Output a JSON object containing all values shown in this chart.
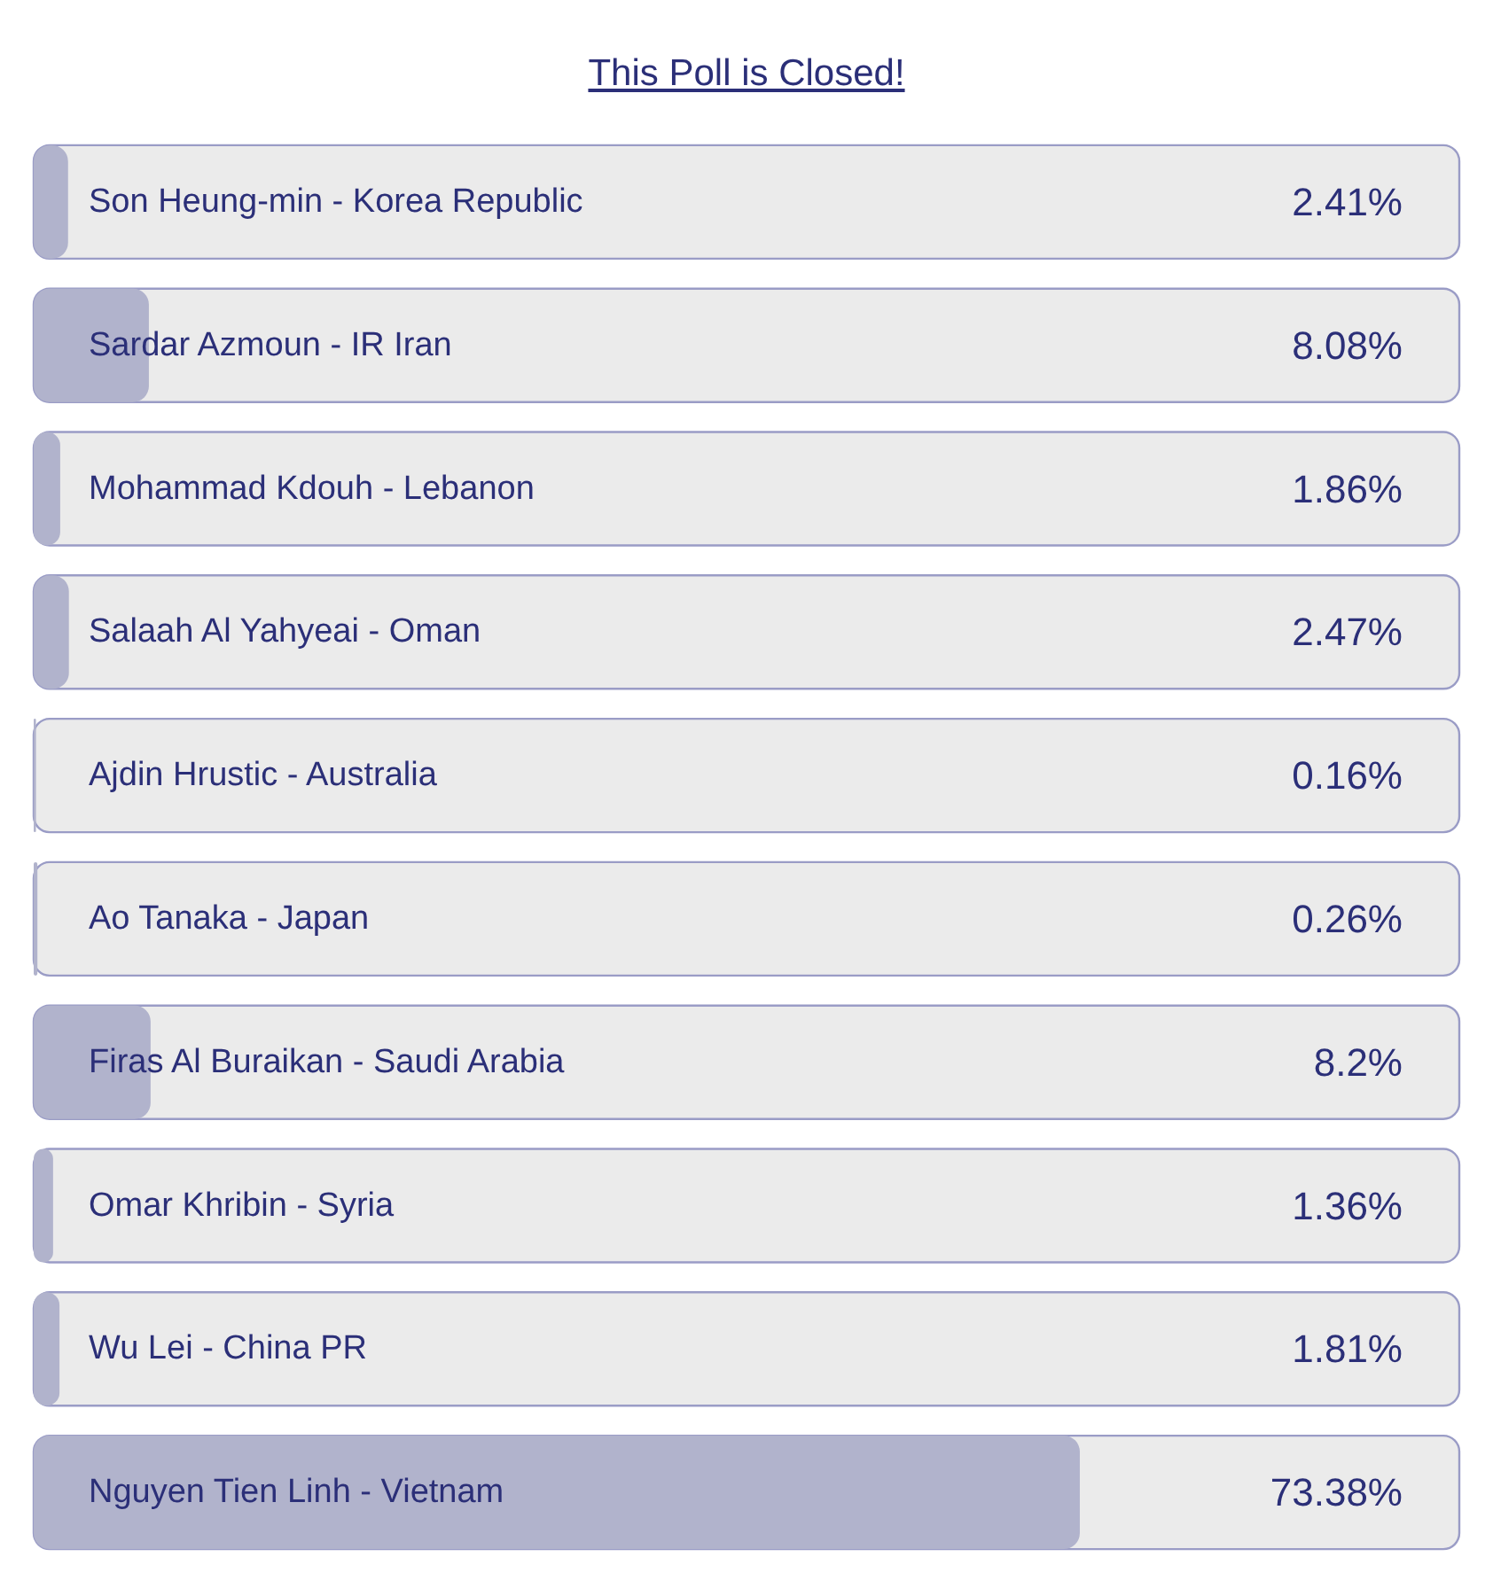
{
  "chart_data": {
    "type": "bar",
    "orientation": "horizontal",
    "title": "This Poll is Closed!",
    "categories": [
      "Son Heung-min - Korea Republic",
      "Sardar Azmoun - IR Iran",
      "Mohammad Kdouh - Lebanon",
      "Salaah Al Yahyeai - Oman",
      "Ajdin Hrustic - Australia",
      "Ao Tanaka - Japan",
      "Firas Al Buraikan - Saudi Arabia",
      "Omar Khribin - Syria",
      "Wu Lei - China PR",
      "Nguyen Tien Linh - Vietnam"
    ],
    "values": [
      2.41,
      8.08,
      1.86,
      2.47,
      0.16,
      0.26,
      8.2,
      1.36,
      1.81,
      73.38
    ],
    "value_labels": [
      "2.41%",
      "8.08%",
      "1.86%",
      "2.47%",
      "0.16%",
      "0.26%",
      "8.2%",
      "1.36%",
      "1.81%",
      "73.38%"
    ],
    "color": "#b1b3cc",
    "xlim": [
      0,
      100
    ],
    "tick_labels": "y"
  }
}
